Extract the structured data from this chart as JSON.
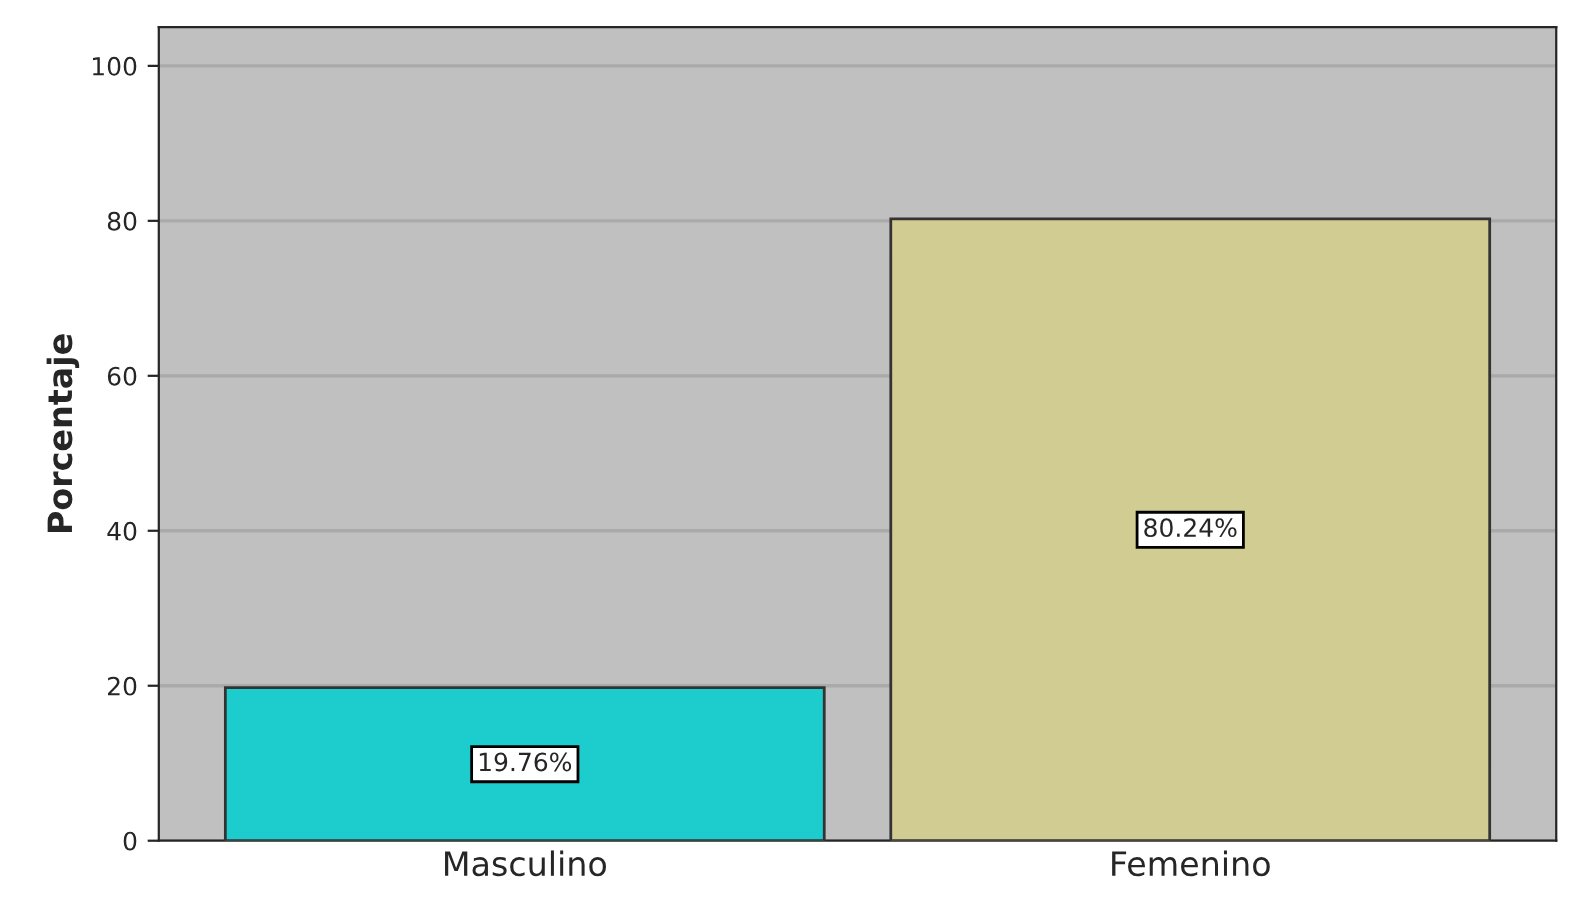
{
  "chart_data": {
    "type": "bar",
    "ylabel": "Porcentaje",
    "categories": [
      "Masculino",
      "Femenino"
    ],
    "values": [
      19.76,
      80.24
    ],
    "colors": [
      "#1dcccc",
      "#d1cc91"
    ],
    "value_labels": [
      "19.76%",
      "80.24%"
    ],
    "ylim": [
      0,
      105
    ],
    "yticks": [
      0,
      20,
      40,
      60,
      80,
      100
    ],
    "grid": "y"
  }
}
